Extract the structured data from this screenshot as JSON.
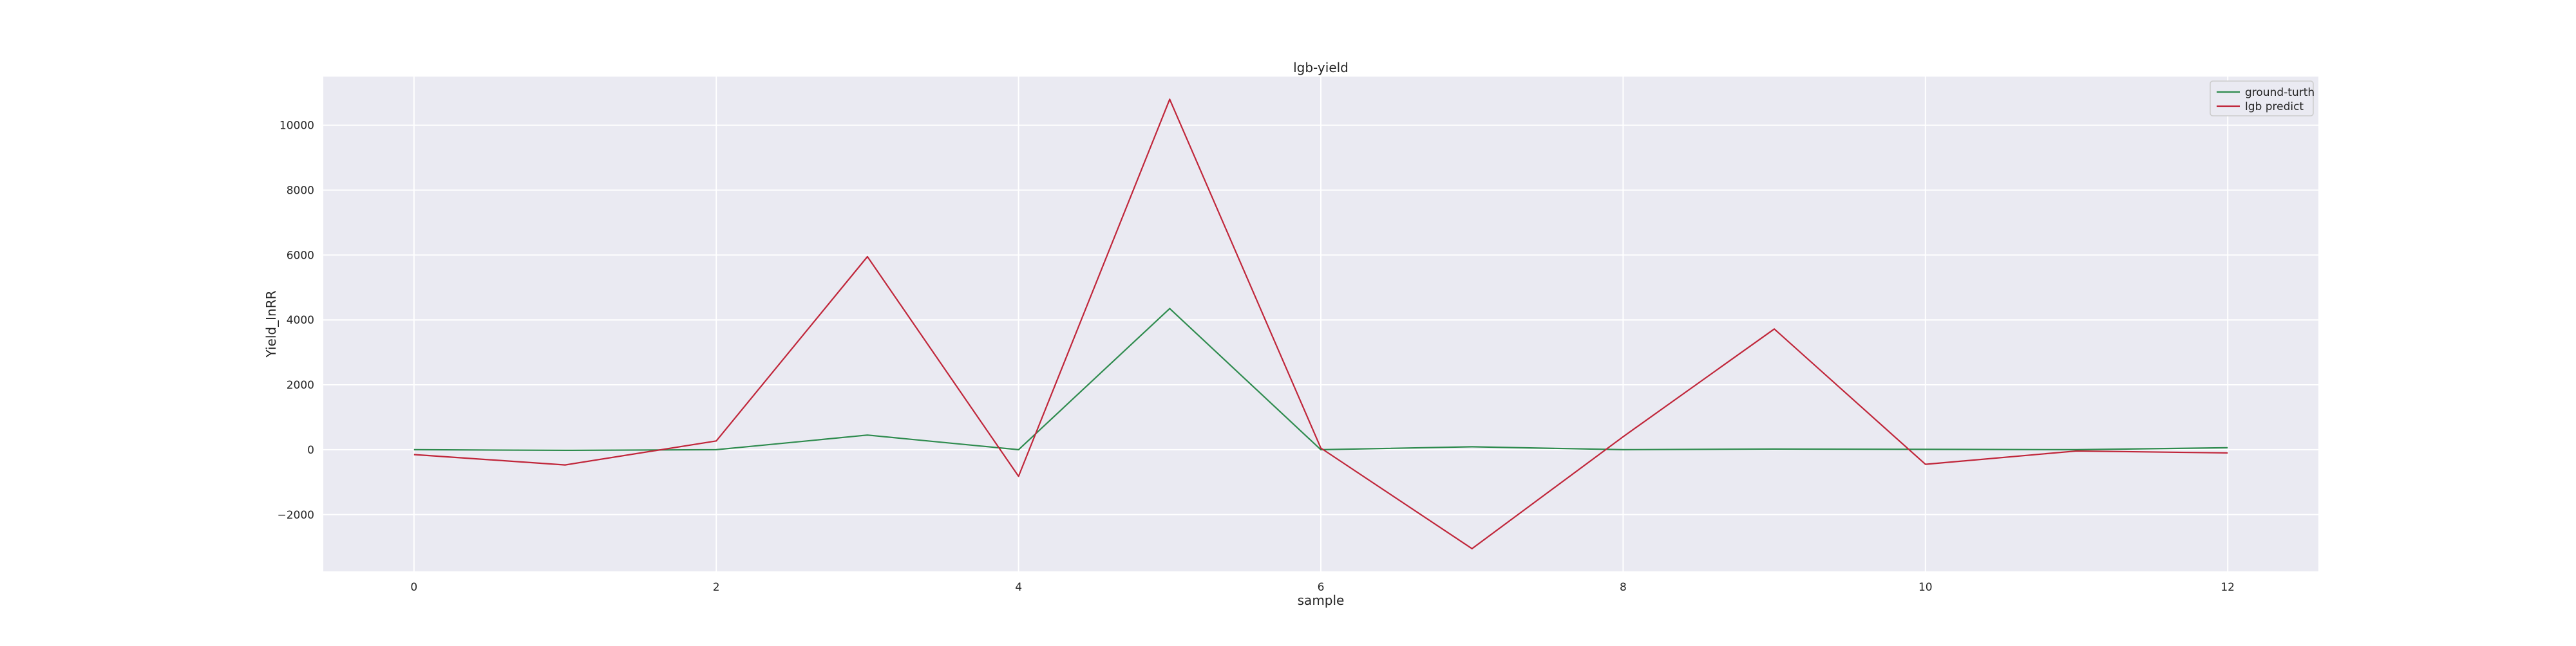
{
  "chart_data": {
    "type": "line",
    "title": "lgb-yield",
    "xlabel": "sample",
    "ylabel": "Yield_InRR",
    "x": [
      0,
      1,
      2,
      3,
      4,
      5,
      6,
      7,
      8,
      9,
      10,
      11,
      12
    ],
    "series": [
      {
        "name": "ground-turth",
        "color": "#2e8b4e",
        "values": [
          0,
          -20,
          0,
          450,
          0,
          4350,
          0,
          90,
          0,
          20,
          10,
          0,
          60
        ]
      },
      {
        "name": "lgb predict",
        "color": "#c0263a",
        "values": [
          -150,
          -470,
          270,
          5950,
          -820,
          10800,
          50,
          -3050,
          400,
          3720,
          -450,
          -40,
          -100
        ]
      }
    ],
    "xlim": [
      -0.6,
      12.6
    ],
    "ylim": [
      -3750,
      11500
    ],
    "xticks": [
      0,
      2,
      4,
      6,
      8,
      10,
      12
    ],
    "xtick_labels": [
      "0",
      "2",
      "4",
      "6",
      "8",
      "10",
      "12"
    ],
    "yticks": [
      -2000,
      0,
      2000,
      4000,
      6000,
      8000,
      10000
    ],
    "ytick_labels": [
      "−2000",
      "0",
      "2000",
      "4000",
      "6000",
      "8000",
      "10000"
    ],
    "grid": true,
    "legend": "top-right",
    "background_color": "#eaeaf2"
  }
}
